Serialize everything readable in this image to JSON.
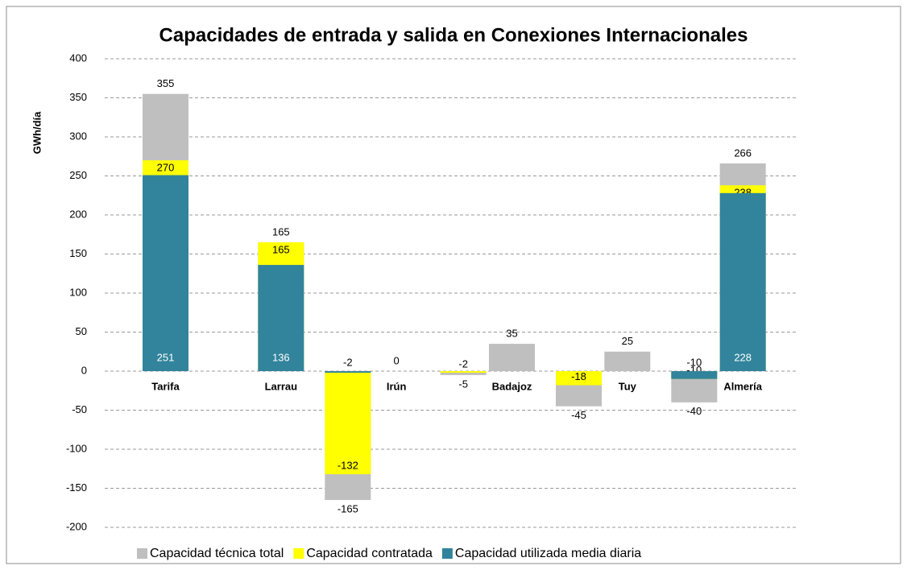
{
  "chart_data": {
    "type": "bar",
    "title": "Capacidades de entrada y salida en Conexiones Internacionales",
    "y_label": "GWh/día",
    "categories": [
      "Tarifa",
      null,
      "Larrau",
      null,
      "Irún",
      null,
      "Badajoz",
      null,
      "Tuy",
      null,
      "Almería",
      null
    ],
    "series": [
      {
        "name": "Capacidad técnica total",
        "color": "#bfbfbf",
        "values": [
          355,
          null,
          165,
          -165,
          0,
          -5,
          35,
          -45,
          25,
          -40,
          266,
          null
        ]
      },
      {
        "name": "Capacidad contratada",
        "color": "#ffff00",
        "values": [
          270,
          null,
          165,
          -132,
          null,
          -2,
          null,
          -18,
          null,
          -10,
          238,
          null
        ]
      },
      {
        "name": "Capacidad utilizada media diaria",
        "color": "#31849b",
        "values": [
          251,
          null,
          136,
          -2,
          null,
          null,
          null,
          null,
          null,
          -10,
          228,
          null
        ]
      }
    ],
    "ylim": [
      -200,
      400
    ],
    "yticks": [
      -200,
      -150,
      -100,
      -50,
      0,
      50,
      100,
      150,
      200,
      250,
      300,
      350,
      400
    ],
    "grid": true,
    "legend": "bottom",
    "overlap": true
  }
}
